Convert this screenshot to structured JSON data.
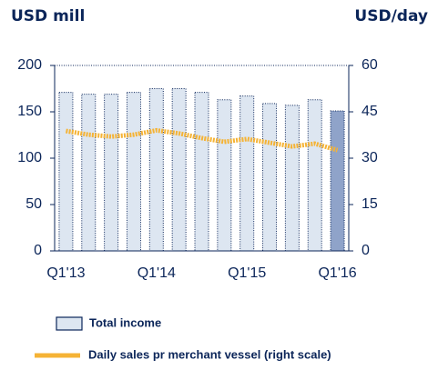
{
  "chart_data": {
    "type": "bar_line",
    "y_title": "USD mill",
    "y2_title": "USD/day",
    "categories": [
      "Q1'13",
      null,
      null,
      null,
      "Q1'14",
      null,
      null,
      null,
      "Q1'15",
      null,
      null,
      null,
      "Q1'16"
    ],
    "series": [
      {
        "name": "Total income",
        "type": "bar",
        "color": "#dde6f1",
        "colors": [
          "#dde6f1",
          "#dde6f1",
          "#dde6f1",
          "#dde6f1",
          "#dde6f1",
          "#dde6f1",
          "#dde6f1",
          "#dde6f1",
          "#dde6f1",
          "#dde6f1",
          "#dde6f1",
          "#dde6f1",
          "#8fa3c9"
        ],
        "values": [
          171,
          169,
          169,
          171,
          175,
          175,
          171,
          163,
          167,
          159,
          157,
          163,
          151
        ]
      },
      {
        "name": "Daily sales pr merchant vessel (right scale)",
        "type": "line",
        "axis": "y2",
        "color": "#f5b335",
        "values": [
          38.8,
          37.6,
          37,
          37.6,
          39,
          38,
          36.5,
          35.3,
          36.2,
          35,
          33.8,
          34.7,
          32.6
        ]
      }
    ],
    "ylim": [
      0,
      200
    ],
    "yticks": [
      0,
      50,
      100,
      150,
      200
    ],
    "y2lim": [
      0,
      60
    ],
    "y2ticks": [
      0,
      15,
      30,
      45,
      60
    ]
  }
}
